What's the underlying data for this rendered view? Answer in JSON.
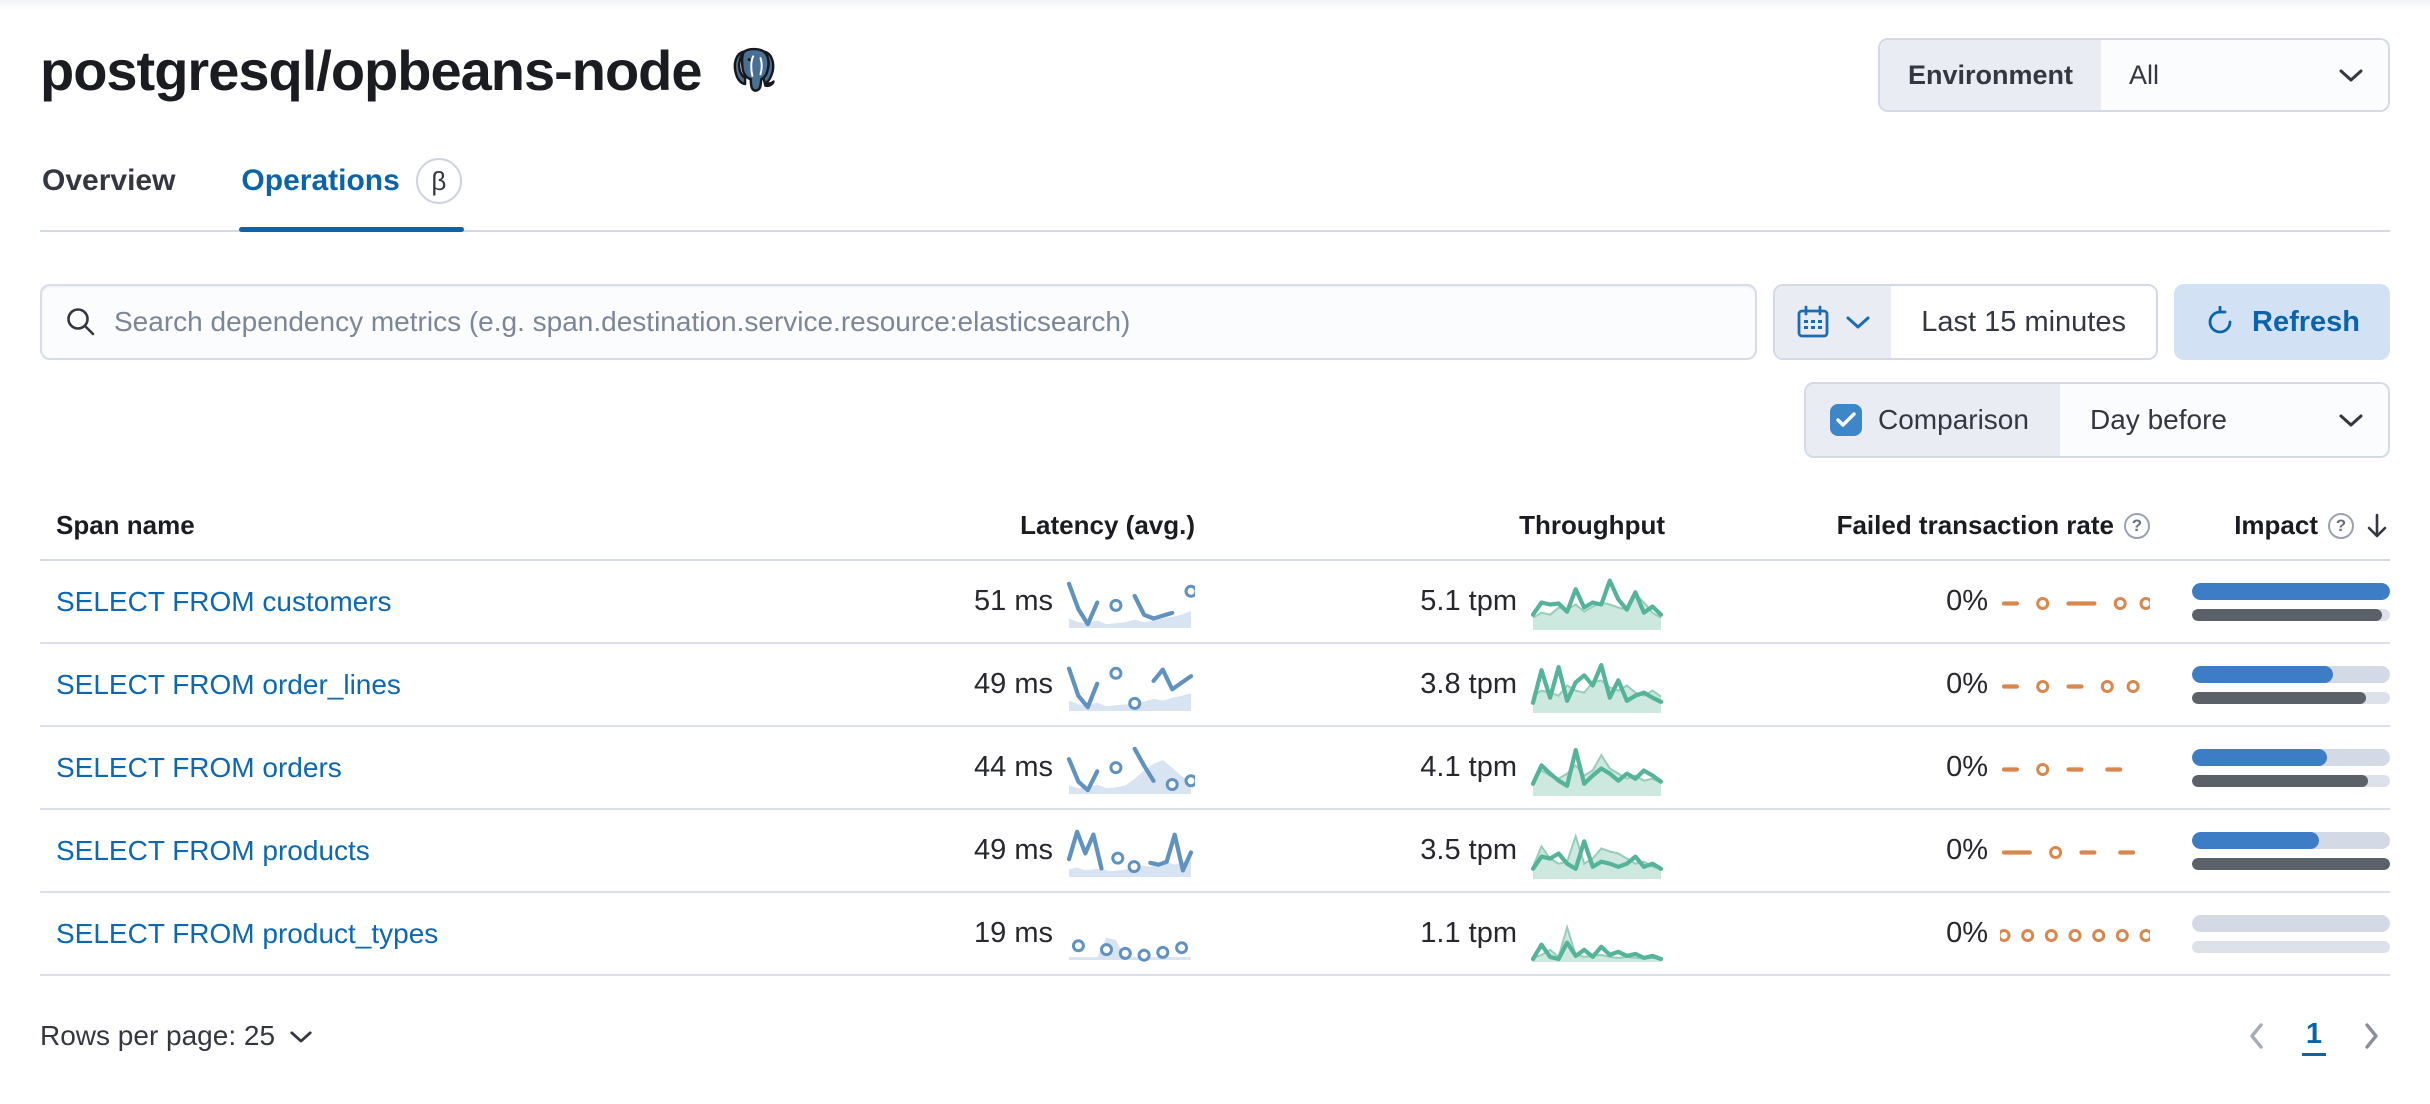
{
  "header": {
    "title": "postgresql/opbeans-node",
    "env_label": "Environment",
    "env_value": "All"
  },
  "tabs": {
    "overview": "Overview",
    "operations": "Operations",
    "beta": "β"
  },
  "controls": {
    "search_placeholder": "Search dependency metrics (e.g. span.destination.service.resource:elasticsearch)",
    "time_range": "Last 15 minutes",
    "refresh_label": "Refresh",
    "comparison_label": "Comparison",
    "comparison_value": "Day before"
  },
  "icons": {
    "search": "magnifier",
    "calendar": "calendar",
    "refresh": "circular-arrow",
    "help": "?",
    "sort": "arrow-down",
    "elephant": "postgresql-logo"
  },
  "colors": {
    "accent": "#0b64a9",
    "latency": "#6092C0",
    "latency_fill": "#D8E4F1",
    "throughput": "#54B399",
    "throughput_fill": "#CDE8DE",
    "throughput_comp_stroke": "#96CDBA",
    "failed": "#D9874C",
    "impact_current": "#3d7dc6",
    "impact_previous": "#5a6168"
  },
  "table": {
    "columns": [
      "Span name",
      "Latency (avg.)",
      "Throughput",
      "Failed transaction rate",
      "Impact"
    ],
    "rows": [
      {
        "span_name": "SELECT FROM customers",
        "latency": "51 ms",
        "throughput": "5.1 tpm",
        "failed_rate": "0%",
        "impact": {
          "current": 100,
          "previous": 96
        },
        "latency_spark": {
          "color": "#6092C0",
          "fill": "#D8E4F1",
          "main": [
            92,
            38,
            6,
            52,
            null,
            46,
            null,
            66,
            26,
            18,
            24,
            30,
            null,
            76
          ],
          "comp": [
            18,
            10,
            8,
            14,
            6,
            8,
            10,
            16,
            10,
            14,
            18,
            22,
            26,
            34
          ]
        },
        "throughput_spark": {
          "color": "#54B399",
          "fill": "#CDE8DE",
          "comp_stroke": "#96CDBA",
          "main": [
            28,
            52,
            48,
            50,
            34,
            78,
            42,
            52,
            48,
            95,
            58,
            38,
            72,
            32,
            44,
            28
          ],
          "comp": [
            22,
            32,
            28,
            42,
            38,
            48,
            34,
            44,
            52,
            48,
            42,
            38,
            68,
            52,
            32,
            22
          ]
        },
        "failed_spark": {
          "color": "#D9874C",
          "main": [
            50,
            50,
            null,
            50,
            null,
            50,
            50,
            50,
            null,
            50,
            null,
            50
          ]
        }
      },
      {
        "span_name": "SELECT FROM order_lines",
        "latency": "49 ms",
        "throughput": "3.8 tpm",
        "failed_rate": "0%",
        "impact": {
          "current": 71,
          "previous": 88
        },
        "latency_spark": {
          "color": "#6092C0",
          "fill": "#D8E4F1",
          "main": [
            88,
            30,
            6,
            56,
            null,
            78,
            null,
            14,
            null,
            62,
            86,
            44,
            58,
            72
          ],
          "comp": [
            20,
            12,
            10,
            16,
            8,
            10,
            12,
            14,
            18,
            24,
            20,
            26,
            30,
            36
          ]
        },
        "throughput_spark": {
          "color": "#54B399",
          "fill": "#CDE8DE",
          "comp_stroke": "#96CDBA",
          "main": [
            18,
            82,
            28,
            88,
            22,
            58,
            72,
            52,
            92,
            28,
            62,
            22,
            32,
            38,
            28,
            20
          ],
          "comp": [
            32,
            42,
            38,
            32,
            52,
            42,
            38,
            58,
            62,
            48,
            42,
            52,
            38,
            32,
            42,
            30
          ]
        },
        "failed_spark": {
          "color": "#D9874C",
          "main": [
            50,
            50,
            null,
            50,
            null,
            50,
            50,
            null,
            50,
            null,
            50,
            null
          ]
        }
      },
      {
        "span_name": "SELECT FROM orders",
        "latency": "44 ms",
        "throughput": "4.1 tpm",
        "failed_rate": "0%",
        "impact": {
          "current": 68,
          "previous": 89
        },
        "latency_spark": {
          "color": "#6092C0",
          "fill": "#D8E4F1",
          "main": [
            72,
            24,
            6,
            46,
            null,
            54,
            null,
            94,
            58,
            26,
            null,
            18,
            null,
            26
          ],
          "comp": [
            16,
            10,
            12,
            18,
            10,
            12,
            16,
            30,
            48,
            62,
            70,
            54,
            36,
            26
          ]
        },
        "throughput_spark": {
          "color": "#54B399",
          "fill": "#CDE8DE",
          "comp_stroke": "#96CDBA",
          "main": [
            22,
            58,
            42,
            28,
            18,
            88,
            22,
            38,
            52,
            42,
            28,
            42,
            32,
            48,
            38,
            26
          ],
          "comp": [
            28,
            48,
            38,
            32,
            42,
            58,
            38,
            48,
            78,
            52,
            42,
            32,
            38,
            28,
            32,
            24
          ]
        },
        "failed_spark": {
          "color": "#D9874C",
          "main": [
            50,
            50,
            null,
            50,
            null,
            50,
            50,
            null,
            50,
            50,
            null,
            null
          ]
        }
      },
      {
        "span_name": "SELECT FROM products",
        "latency": "49 ms",
        "throughput": "3.5 tpm",
        "failed_rate": "0%",
        "impact": {
          "current": 64,
          "previous": 100
        },
        "latency_spark": {
          "color": "#6092C0",
          "fill": "#D8E4F1",
          "main": [
            36,
            94,
            48,
            88,
            16,
            null,
            38,
            null,
            20,
            null,
            28,
            24,
            30,
            88,
            12,
            50
          ],
          "comp": [
            14,
            18,
            12,
            14,
            16,
            10,
            12,
            14,
            18,
            22,
            20,
            26,
            30,
            24,
            30,
            36
          ]
        },
        "throughput_spark": {
          "color": "#54B399",
          "fill": "#CDE8DE",
          "comp_stroke": "#96CDBA",
          "main": [
            18,
            42,
            38,
            48,
            28,
            18,
            72,
            22,
            32,
            28,
            22,
            28,
            42,
            22,
            28,
            18
          ],
          "comp": [
            22,
            62,
            38,
            28,
            32,
            82,
            28,
            38,
            58,
            52,
            48,
            38,
            28,
            32,
            22,
            18
          ]
        },
        "failed_spark": {
          "color": "#D9874C",
          "main": [
            50,
            50,
            50,
            null,
            50,
            null,
            50,
            50,
            null,
            50,
            50,
            null
          ]
        }
      },
      {
        "span_name": "SELECT FROM product_types",
        "latency": "19 ms",
        "throughput": "1.1 tpm",
        "failed_rate": "0%",
        "impact": {
          "current": 0,
          "previous": 0
        },
        "latency_spark": {
          "color": "#6092C0",
          "fill": "#D8E4F1",
          "main": [
            null,
            28,
            null,
            null,
            20,
            null,
            12,
            null,
            8,
            null,
            14,
            null,
            24,
            null
          ],
          "comp": [
            4,
            4,
            4,
            4,
            46,
            40,
            4,
            4,
            4,
            4,
            4,
            4,
            4,
            4
          ]
        },
        "throughput_spark": {
          "color": "#54B399",
          "fill": "#CDE8DE",
          "comp_stroke": "#96CDBA",
          "main": [
            4,
            32,
            8,
            4,
            36,
            10,
            22,
            8,
            28,
            12,
            18,
            10,
            14,
            6,
            10,
            4
          ],
          "comp": [
            6,
            12,
            22,
            8,
            66,
            12,
            8,
            10,
            12,
            8,
            6,
            8,
            6,
            5,
            6,
            4
          ]
        },
        "failed_spark": {
          "color": "#D9874C",
          "main": [
            50,
            null,
            50,
            null,
            50,
            null,
            50,
            null,
            50,
            null,
            50,
            null,
            50
          ]
        }
      }
    ]
  },
  "footer": {
    "rows_per_page": "Rows per page: 25",
    "page": "1"
  }
}
